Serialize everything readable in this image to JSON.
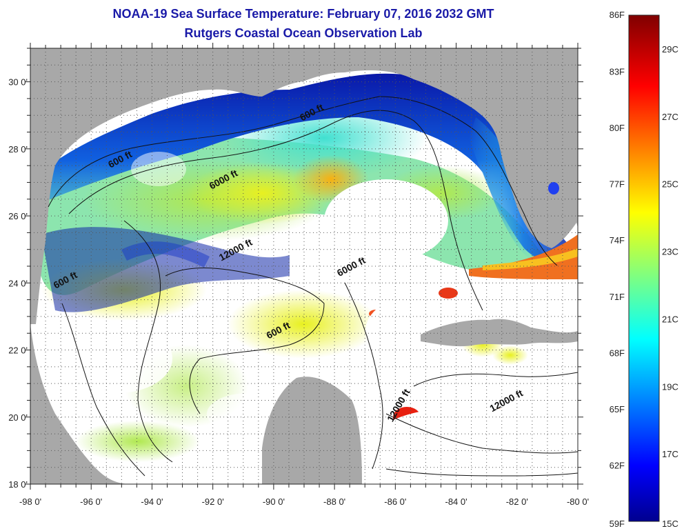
{
  "header": {
    "title": "NOAA-19 Sea Surface Temperature:  February 07, 2016 2032 GMT",
    "subtitle": "Rutgers Coastal Ocean Observation Lab"
  },
  "map": {
    "region": "Gulf of Mexico",
    "lon_range": [
      -98,
      -80
    ],
    "lat_range": [
      18,
      31
    ],
    "x_ticks": [
      "-98 0'",
      "-96 0'",
      "-94 0'",
      "-92 0'",
      "-90 0'",
      "-88 0'",
      "-86 0'",
      "-84 0'",
      "-82 0'",
      "-80 0'"
    ],
    "y_ticks": [
      "30 0'",
      "28 0'",
      "26 0'",
      "24 0'",
      "22 0'",
      "20 0'",
      "18 0'"
    ],
    "contour_labels": [
      {
        "text": "600 ft",
        "lon": -88.7,
        "lat": 29.0
      },
      {
        "text": "600 ft",
        "lon": -95.0,
        "lat": 27.6
      },
      {
        "text": "6000 ft",
        "lon": -91.6,
        "lat": 27.0
      },
      {
        "text": "12000 ft",
        "lon": -91.2,
        "lat": 24.9
      },
      {
        "text": "6000 ft",
        "lon": -87.4,
        "lat": 24.4
      },
      {
        "text": "600 ft",
        "lon": -96.8,
        "lat": 24.0
      },
      {
        "text": "600 ft",
        "lon": -89.8,
        "lat": 22.5
      },
      {
        "text": "12000 ft",
        "lon": -85.8,
        "lat": 20.3
      },
      {
        "text": "12000 ft",
        "lon": -82.3,
        "lat": 20.4
      }
    ],
    "grid": "dotted",
    "land_color": "#a8a8a8",
    "cloud_color": "#ffffff"
  },
  "colorbar": {
    "fahrenheit_labels": [
      "86F",
      "83F",
      "80F",
      "77F",
      "74F",
      "71F",
      "68F",
      "65F",
      "62F",
      "59F"
    ],
    "celsius_labels": [
      "29C",
      "27C",
      "25C",
      "23C",
      "21C",
      "19C",
      "17C",
      "15C"
    ],
    "fahrenheit_values": [
      86,
      83,
      80,
      77,
      74,
      71,
      68,
      65,
      62,
      59
    ],
    "celsius_values": [
      29,
      27,
      25,
      23,
      21,
      19,
      17,
      15
    ],
    "range_f": [
      59,
      86
    ],
    "colormap": "jet"
  }
}
